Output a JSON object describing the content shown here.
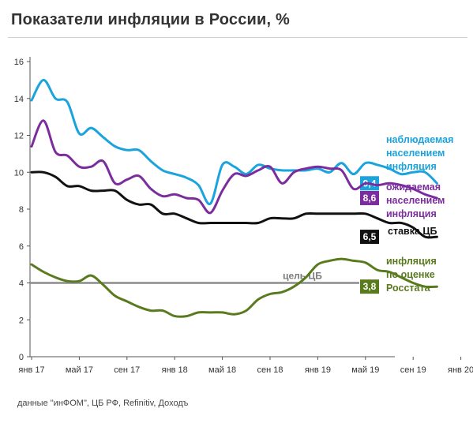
{
  "title": "Показатели инфляции в России, %",
  "source": "данные \"инФОМ\", ЦБ РФ, Refinitiv, Доходъ",
  "chart_data": {
    "type": "line",
    "ylim": [
      0,
      16
    ],
    "yticks": [
      0,
      2,
      4,
      6,
      8,
      10,
      12,
      14,
      16
    ],
    "xticks": [
      "янв 17",
      "май 17",
      "сен 17",
      "янв 18",
      "май 18",
      "сен 18",
      "янв 19",
      "май 19",
      "сен 19",
      "янв 20"
    ],
    "x_months": [
      "янв 17",
      "фев 17",
      "мар 17",
      "апр 17",
      "май 17",
      "июн 17",
      "июл 17",
      "авг 17",
      "сен 17",
      "окт 17",
      "ноя 17",
      "дек 17",
      "янв 18",
      "фев 18",
      "мар 18",
      "апр 18",
      "май 18",
      "июн 18",
      "июл 18",
      "авг 18",
      "сен 18",
      "окт 18",
      "ноя 18",
      "дек 18",
      "янв 19",
      "фев 19",
      "мар 19",
      "апр 19",
      "май 19",
      "июн 19",
      "июл 19",
      "авг 19",
      "сен 19",
      "окт 19",
      "ноя 19"
    ],
    "grid": false,
    "series": [
      {
        "name": "наблюдаемая населением инфляция",
        "color": "#1aa3dc",
        "end_label": "9,4",
        "values": [
          13.9,
          15.0,
          14.0,
          13.8,
          12.1,
          12.4,
          11.9,
          11.4,
          11.2,
          11.2,
          10.6,
          10.1,
          9.9,
          9.7,
          9.3,
          8.3,
          10.4,
          10.3,
          9.9,
          10.4,
          10.2,
          10.1,
          10.1,
          10.1,
          10.2,
          10.0,
          10.5,
          9.9,
          10.5,
          10.4,
          10.2,
          9.9,
          10.0,
          10.0,
          9.4
        ]
      },
      {
        "name": "ожидаемая населением инфляция",
        "color": "#7b2d9e",
        "end_label": "8,6",
        "values": [
          11.4,
          12.8,
          11.1,
          10.9,
          10.3,
          10.3,
          10.6,
          9.4,
          9.6,
          9.8,
          9.1,
          8.7,
          8.8,
          8.6,
          8.5,
          7.8,
          9.0,
          9.9,
          9.8,
          10.1,
          10.3,
          9.4,
          10.0,
          10.2,
          10.3,
          10.2,
          10.1,
          9.1,
          9.4,
          9.3,
          9.4,
          9.3,
          9.1,
          8.8,
          8.6
        ]
      },
      {
        "name": "ставка ЦБ",
        "color": "#111111",
        "end_label": "6,5",
        "values": [
          10.0,
          10.0,
          9.75,
          9.25,
          9.25,
          9.0,
          9.0,
          9.0,
          8.5,
          8.25,
          8.25,
          7.75,
          7.75,
          7.5,
          7.25,
          7.25,
          7.25,
          7.25,
          7.25,
          7.25,
          7.5,
          7.5,
          7.5,
          7.75,
          7.75,
          7.75,
          7.75,
          7.75,
          7.75,
          7.5,
          7.25,
          7.25,
          7.0,
          6.5,
          6.5
        ]
      },
      {
        "name": "инфляция по оценке Росстата",
        "color": "#5a7a1e",
        "end_label": "3,8",
        "values": [
          5.0,
          4.6,
          4.3,
          4.1,
          4.1,
          4.4,
          3.9,
          3.3,
          3.0,
          2.7,
          2.5,
          2.5,
          2.2,
          2.2,
          2.4,
          2.4,
          2.4,
          2.3,
          2.5,
          3.1,
          3.4,
          3.5,
          3.8,
          4.3,
          5.0,
          5.2,
          5.3,
          5.2,
          5.1,
          4.7,
          4.6,
          4.3,
          4.0,
          3.8,
          3.8
        ]
      }
    ],
    "target": {
      "label": "цель ЦБ",
      "value": 4.0,
      "color": "#8c8c8c"
    },
    "legend": [
      {
        "lines": [
          "наблюдаемая",
          "населением",
          "инфляция"
        ],
        "color": "#1aa3dc"
      },
      {
        "lines": [
          "ожидаемая",
          "населением",
          "инфляция"
        ],
        "color": "#7b2d9e"
      },
      {
        "lines": [
          "ставка ЦБ"
        ],
        "color": "#111111"
      },
      {
        "lines": [
          "инфляция",
          "по оценке",
          "Росстата"
        ],
        "color": "#5a7a1e"
      }
    ]
  }
}
